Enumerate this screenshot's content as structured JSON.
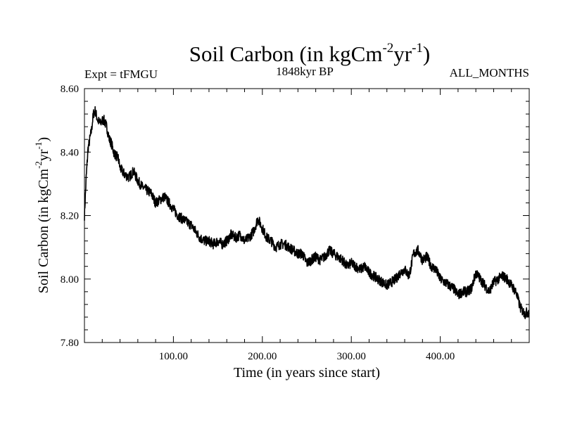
{
  "chart_data": {
    "type": "line",
    "title": {
      "base": "Soil Carbon (in kgCm",
      "sup1": "-2",
      "mid": "yr",
      "sup2": "-1",
      "end": ")"
    },
    "subtitle_left": "Expt = tFMGU",
    "subtitle_center": "1848kyr BP",
    "subtitle_right": "ALL_MONTHS",
    "xlabel": "Time (in years since start)",
    "ylabel": {
      "base": "Soil Carbon (in kgCm",
      "sup1": "-2",
      "mid": "yr",
      "sup2": "-1",
      "end": ")"
    },
    "xlim": [
      0,
      500
    ],
    "ylim": [
      7.8,
      8.6
    ],
    "x_ticks": [
      {
        "value": 100,
        "label": "100.00"
      },
      {
        "value": 200,
        "label": "200.00"
      },
      {
        "value": 300,
        "label": "300.00"
      },
      {
        "value": 400,
        "label": "400.00"
      }
    ],
    "y_ticks": [
      {
        "value": 7.8,
        "label": "7.80"
      },
      {
        "value": 8.0,
        "label": "8.00"
      },
      {
        "value": 8.2,
        "label": "8.20"
      },
      {
        "value": 8.4,
        "label": "8.40"
      },
      {
        "value": 8.6,
        "label": "8.60"
      }
    ],
    "series": [
      {
        "name": "Soil Carbon",
        "color": "#000000",
        "band": 0.016,
        "x": [
          0,
          2,
          4,
          6,
          8,
          10,
          12,
          15,
          18,
          20,
          22,
          25,
          28,
          30,
          33,
          35,
          38,
          40,
          45,
          50,
          55,
          60,
          65,
          70,
          75,
          80,
          85,
          90,
          95,
          100,
          105,
          110,
          115,
          120,
          125,
          130,
          135,
          140,
          145,
          150,
          155,
          160,
          165,
          170,
          175,
          180,
          185,
          190,
          195,
          200,
          205,
          210,
          215,
          220,
          225,
          230,
          235,
          240,
          245,
          250,
          255,
          260,
          265,
          270,
          275,
          280,
          285,
          290,
          295,
          300,
          305,
          310,
          315,
          320,
          325,
          330,
          335,
          340,
          345,
          350,
          355,
          360,
          365,
          370,
          375,
          380,
          385,
          390,
          395,
          400,
          405,
          410,
          415,
          420,
          425,
          430,
          435,
          440,
          445,
          450,
          455,
          460,
          465,
          470,
          475,
          480,
          485,
          490,
          495,
          500
        ],
        "values": [
          8.2,
          8.32,
          8.41,
          8.44,
          8.47,
          8.52,
          8.53,
          8.5,
          8.49,
          8.5,
          8.5,
          8.48,
          8.44,
          8.43,
          8.4,
          8.39,
          8.38,
          8.35,
          8.33,
          8.32,
          8.34,
          8.31,
          8.29,
          8.28,
          8.27,
          8.24,
          8.25,
          8.26,
          8.24,
          8.22,
          8.2,
          8.19,
          8.18,
          8.17,
          8.15,
          8.13,
          8.12,
          8.12,
          8.11,
          8.12,
          8.11,
          8.12,
          8.14,
          8.13,
          8.14,
          8.12,
          8.13,
          8.15,
          8.19,
          8.16,
          8.13,
          8.12,
          8.1,
          8.11,
          8.11,
          8.1,
          8.09,
          8.08,
          8.08,
          8.05,
          8.06,
          8.07,
          8.06,
          8.07,
          8.09,
          8.08,
          8.07,
          8.06,
          8.04,
          8.05,
          8.04,
          8.03,
          8.04,
          8.02,
          8.01,
          8.0,
          7.99,
          7.98,
          7.99,
          8.0,
          8.02,
          8.03,
          8.01,
          8.08,
          8.09,
          8.06,
          8.07,
          8.04,
          8.03,
          8.0,
          7.99,
          7.98,
          7.97,
          7.95,
          7.96,
          7.96,
          7.97,
          8.02,
          8.0,
          7.98,
          7.96,
          7.99,
          8.0,
          8.01,
          8.0,
          7.98,
          7.96,
          7.91,
          7.89,
          7.9
        ]
      }
    ]
  }
}
